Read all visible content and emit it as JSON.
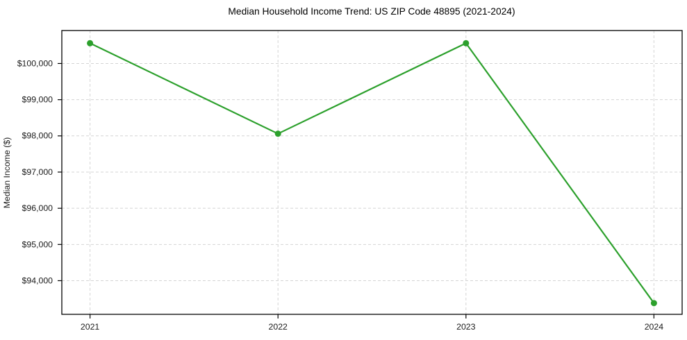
{
  "chart_data": {
    "type": "line",
    "title": "Median Household Income Trend: US ZIP Code 48895 (2021-2024)",
    "xlabel": "",
    "ylabel": "Median Income ($)",
    "x": [
      2021,
      2022,
      2023,
      2024
    ],
    "x_tick_labels": [
      "2021",
      "2022",
      "2023",
      "2024"
    ],
    "series": [
      {
        "values": [
          100560,
          98060,
          100560,
          93380
        ],
        "color": "#2ca02c",
        "marker": "circle",
        "line_width": 2.2,
        "marker_radius": 4.5
      }
    ],
    "xlim": [
      2020.85,
      2024.15
    ],
    "ylim": [
      93070,
      100910
    ],
    "yticks": [
      94000,
      95000,
      96000,
      97000,
      98000,
      99000,
      100000
    ],
    "ytick_labels": [
      "$94,000",
      "$95,000",
      "$96,000",
      "$97,000",
      "$98,000",
      "$99,000",
      "$100,000"
    ],
    "grid": true,
    "grid_color": "#d4d4d4",
    "grid_dash": "4 3",
    "legend": "none",
    "background_color": "#ffffff",
    "spine_color": "#000000",
    "text_color": "#1a1a1a"
  }
}
